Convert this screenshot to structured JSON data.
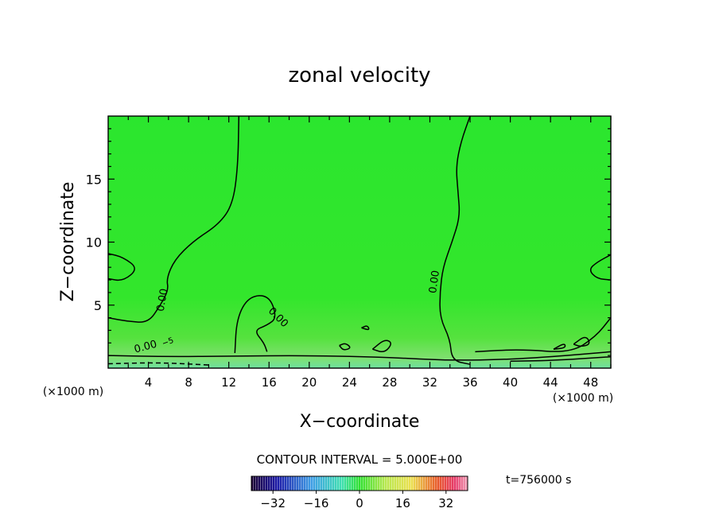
{
  "chart_data": {
    "type": "heatmap",
    "title": "zonal velocity",
    "xlabel": "X−coordinate",
    "ylabel": "Z−coordinate",
    "x_unit": "(×1000 m)",
    "xlim": [
      0,
      50
    ],
    "ylim": [
      0,
      20
    ],
    "x_ticks": [
      4,
      8,
      12,
      16,
      20,
      24,
      28,
      32,
      36,
      40,
      44,
      48
    ],
    "y_ticks": [
      5,
      10,
      15
    ],
    "contour_interval_text": "CONTOUR INTERVAL = 5.000E+00",
    "contour_labels": [
      "0.00",
      "0.00",
      "0.00",
      "0.00",
      "−5"
    ],
    "colorbar": {
      "min": -40,
      "max": 40,
      "ticks": [
        -32,
        -16,
        0,
        16,
        32
      ]
    },
    "time_label": "t=756000 s",
    "contours": [
      {
        "level": 0,
        "points": [
          [
            13.0,
            20
          ],
          [
            12.9,
            16
          ],
          [
            12.4,
            13
          ],
          [
            11.0,
            11.4
          ],
          [
            8.5,
            10.1
          ],
          [
            6.6,
            8.6
          ],
          [
            5.8,
            7.1
          ],
          [
            6.0,
            6.2
          ],
          [
            5.2,
            5.0
          ],
          [
            4.0,
            3.6
          ],
          [
            2.0,
            3.7
          ],
          [
            0,
            4.0
          ]
        ]
      },
      {
        "level": 0,
        "points": [
          [
            36.0,
            20
          ],
          [
            35.1,
            18
          ],
          [
            34.6,
            16
          ],
          [
            34.8,
            14
          ],
          [
            35.0,
            12
          ],
          [
            34.2,
            10
          ],
          [
            33.3,
            8
          ],
          [
            33.0,
            6
          ],
          [
            33.0,
            4
          ],
          [
            34.0,
            2.3
          ],
          [
            34.2,
            0.6
          ],
          [
            36.0,
            0.3
          ]
        ]
      },
      {
        "level": 0,
        "points": [
          [
            0,
            1.0
          ],
          [
            6.0,
            0.9
          ],
          [
            12.0,
            0.95
          ],
          [
            20.0,
            1.0
          ],
          [
            28.0,
            0.85
          ],
          [
            34.0,
            0.6
          ],
          [
            40.0,
            0.7
          ],
          [
            44.0,
            0.9
          ],
          [
            50.0,
            1.3
          ]
        ]
      },
      {
        "level": 0,
        "points": [
          [
            40.0,
            0.55
          ],
          [
            44.0,
            0.6
          ],
          [
            50.0,
            0.9
          ]
        ]
      },
      {
        "level": 0,
        "points": [
          [
            0,
            9.1
          ],
          [
            1.5,
            8.8
          ],
          [
            3.0,
            7.9
          ],
          [
            1.5,
            6.9
          ],
          [
            0,
            7.1
          ]
        ]
      },
      {
        "level": 0,
        "points": [
          [
            50,
            9.0
          ],
          [
            48.6,
            8.4
          ],
          [
            47.8,
            7.8
          ],
          [
            48.6,
            7.1
          ],
          [
            50,
            7.0
          ]
        ]
      },
      {
        "level": 0,
        "points": [
          [
            50,
            4.0
          ],
          [
            48.5,
            2.5
          ],
          [
            46.0,
            1.2
          ],
          [
            41.0,
            1.5
          ],
          [
            36.5,
            1.3
          ]
        ]
      },
      {
        "level": 0,
        "points": [
          [
            12.6,
            1.2
          ],
          [
            12.8,
            4.0
          ],
          [
            14.0,
            5.7
          ],
          [
            16.0,
            5.8
          ],
          [
            16.8,
            4.0
          ],
          [
            15.8,
            3.4
          ],
          [
            14.5,
            3.0
          ],
          [
            15.5,
            2.0
          ],
          [
            15.8,
            1.3
          ]
        ]
      },
      {
        "level": 0,
        "points": [
          [
            26.3,
            1.5
          ],
          [
            27.5,
            2.3
          ],
          [
            28.3,
            2.0
          ],
          [
            27.5,
            1.2
          ],
          [
            26.3,
            1.5
          ]
        ]
      },
      {
        "level": 0,
        "points": [
          [
            23.0,
            1.8
          ],
          [
            23.6,
            2.0
          ],
          [
            24.2,
            1.6
          ],
          [
            23.4,
            1.4
          ],
          [
            23.0,
            1.8
          ]
        ]
      },
      {
        "level": 0,
        "points": [
          [
            25.2,
            3.2
          ],
          [
            25.8,
            3.4
          ],
          [
            26.0,
            3.0
          ],
          [
            25.2,
            3.2
          ]
        ]
      },
      {
        "level": 0,
        "points": [
          [
            44.3,
            1.5
          ],
          [
            45.4,
            2.0
          ],
          [
            45.5,
            1.6
          ],
          [
            44.3,
            1.5
          ]
        ]
      },
      {
        "level": 0,
        "points": [
          [
            46.3,
            1.9
          ],
          [
            47.5,
            2.6
          ],
          [
            48.0,
            1.9
          ],
          [
            47.0,
            1.7
          ],
          [
            46.3,
            1.9
          ]
        ]
      },
      {
        "level": -5,
        "dashed": true,
        "points": [
          [
            0,
            0.35
          ],
          [
            5.0,
            0.45
          ],
          [
            10.0,
            0.25
          ]
        ]
      }
    ]
  }
}
